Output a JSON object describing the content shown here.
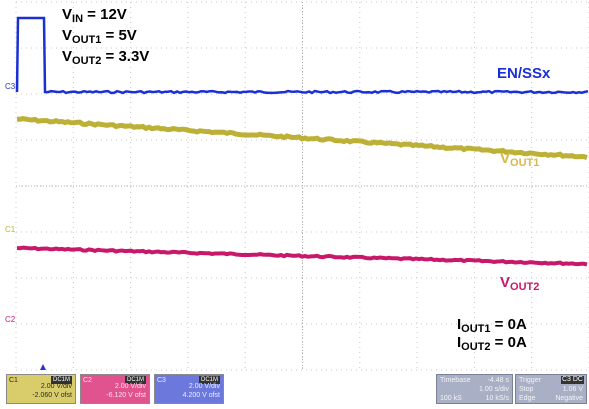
{
  "conditions": {
    "vin": {
      "main": "V",
      "sub": "IN",
      "rest": " = 12V"
    },
    "vout1": {
      "main": "V",
      "sub": "OUT1",
      "rest": " = 5V"
    },
    "vout2": {
      "main": "V",
      "sub": "OUT2",
      "rest": " = 3.3V"
    },
    "iout1": {
      "main": "I",
      "sub": "OUT1",
      "rest": " = 0A"
    },
    "iout2": {
      "main": "I",
      "sub": "OUT2",
      "rest": " = 0A"
    }
  },
  "signals": {
    "en": {
      "label": "EN/SSx",
      "color": "#1a2fd6"
    },
    "vout1": {
      "main": "V",
      "sub": "OUT1",
      "color": "#d8b84a"
    },
    "vout2": {
      "main": "V",
      "sub": "OUT2",
      "color": "#c8186a"
    }
  },
  "markers": {
    "ch1": "C1",
    "ch2": "C2",
    "ch3": "C3"
  },
  "channels": [
    {
      "id": "C1",
      "badge": "DC1M",
      "vdiv": "2.00 V/div",
      "offset": "-2.060 V ofst",
      "color": "#c2b43a"
    },
    {
      "id": "C2",
      "badge": "DC1M",
      "vdiv": "2.00 V/div",
      "offset": "-6.120 V ofst",
      "color": "#d2187a"
    },
    {
      "id": "C3",
      "badge": "DC1M",
      "vdiv": "2.00 V/div",
      "offset": "4.200 V ofst",
      "color": "#2a34cc"
    }
  ],
  "timebase": {
    "label": "Timebase",
    "delay": "-4.48 s",
    "sdiv": "1.00 s/div",
    "samples": "100 kS",
    "rate": "10 kS/s"
  },
  "trigger": {
    "label": "Trigger",
    "badge": "C3 DC",
    "mode": "Stop",
    "level": "1.06 V",
    "type": "Edge",
    "slope": "Negative"
  },
  "colors": {
    "background": "#ffffff",
    "grid": "#c8c8c8",
    "statusbar_bg": "#ffffff"
  },
  "icons": {
    "trigger_marker": "trigger-position-icon"
  }
}
